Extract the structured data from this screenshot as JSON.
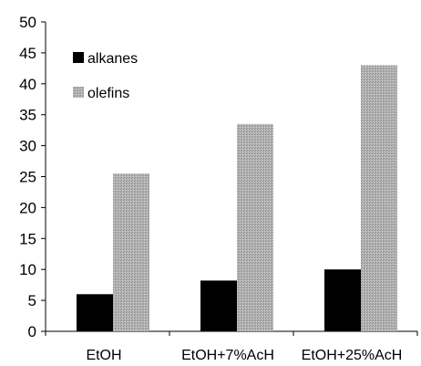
{
  "chart_data": {
    "type": "bar",
    "title": "",
    "xlabel": "",
    "ylabel": "",
    "categories": [
      "EtOH",
      "EtOH+7%AcH",
      "EtOH+25%AcH"
    ],
    "series": [
      {
        "name": "alkanes",
        "values": [
          6,
          8.2,
          10
        ],
        "color": "#000000",
        "pattern": "solid"
      },
      {
        "name": "olefins",
        "values": [
          25.5,
          33.5,
          43
        ],
        "color": "#a6a6a6",
        "pattern": "stippled-gray"
      }
    ],
    "ylim": [
      0,
      50
    ],
    "yticks": [
      0,
      5,
      10,
      15,
      20,
      25,
      30,
      35,
      40,
      45,
      50
    ],
    "grid": false,
    "legend_position": "top-left"
  }
}
